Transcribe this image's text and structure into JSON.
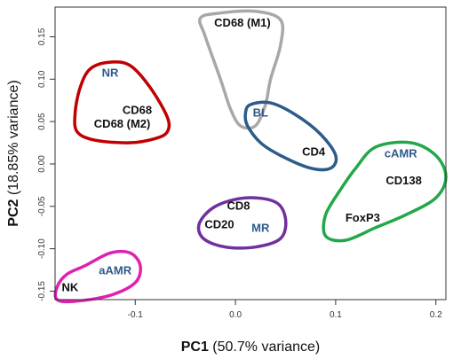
{
  "chart_data": {
    "type": "scatter",
    "title": "",
    "xlabel": {
      "prefix": "PC1",
      "suffix": " (50.7% variance)"
    },
    "ylabel": {
      "prefix": "PC2",
      "suffix": " (18.85% variance)"
    },
    "xlim": [
      -0.18,
      0.21
    ],
    "ylim": [
      -0.16,
      0.185
    ],
    "xticks": [
      {
        "value": -0.1,
        "label": "-0.1"
      },
      {
        "value": 0.0,
        "label": "0.0"
      },
      {
        "value": 0.1,
        "label": "0.1"
      },
      {
        "value": 0.2,
        "label": "0.2"
      }
    ],
    "yticks": [
      {
        "value": -0.15,
        "label": "-0.15"
      },
      {
        "value": -0.1,
        "label": "-0.10"
      },
      {
        "value": -0.05,
        "label": "-0.05"
      },
      {
        "value": 0.0,
        "label": "0.00"
      },
      {
        "value": 0.05,
        "label": "0.05"
      },
      {
        "value": 0.1,
        "label": "0.10"
      },
      {
        "value": 0.15,
        "label": "0.15"
      }
    ],
    "grid": false,
    "groups": [
      {
        "label": "NR",
        "color": "#c00000",
        "label_color": "#2e5b8a",
        "label_at": [
          -0.125,
          0.103
        ],
        "outline": [
          [
            -0.126,
            0.12
          ],
          [
            -0.145,
            0.112
          ],
          [
            -0.155,
            0.09
          ],
          [
            -0.16,
            0.06
          ],
          [
            -0.158,
            0.038
          ],
          [
            -0.14,
            0.028
          ],
          [
            -0.105,
            0.025
          ],
          [
            -0.08,
            0.03
          ],
          [
            -0.068,
            0.038
          ],
          [
            -0.068,
            0.055
          ],
          [
            -0.085,
            0.09
          ],
          [
            -0.105,
            0.116
          ]
        ],
        "markers": [
          {
            "text": "CD68",
            "at": [
              -0.098,
              0.059
            ]
          },
          {
            "text": "CD68 (M2)",
            "at": [
              -0.113,
              0.043
            ]
          }
        ]
      },
      {
        "label": "",
        "color": "#a8a8a8",
        "label_color": "#111111",
        "label_at": [
          0.0,
          0.0
        ],
        "outline": [
          [
            -0.035,
            0.172
          ],
          [
            -0.015,
            0.178
          ],
          [
            0.02,
            0.18
          ],
          [
            0.045,
            0.17
          ],
          [
            0.045,
            0.14
          ],
          [
            0.035,
            0.1
          ],
          [
            0.03,
            0.07
          ],
          [
            0.02,
            0.045
          ],
          [
            0.005,
            0.045
          ],
          [
            -0.005,
            0.065
          ],
          [
            -0.015,
            0.1
          ],
          [
            -0.03,
            0.15
          ]
        ],
        "markers": [
          {
            "text": "CD68 (M1)",
            "at": [
              0.007,
              0.162
            ]
          }
        ]
      },
      {
        "label": "BL",
        "color": "#2e5b8a",
        "label_color": "#2e5b8a",
        "label_at": [
          0.025,
          0.056
        ],
        "outline": [
          [
            0.015,
            0.07
          ],
          [
            0.035,
            0.072
          ],
          [
            0.06,
            0.058
          ],
          [
            0.085,
            0.035
          ],
          [
            0.1,
            0.01
          ],
          [
            0.095,
            -0.005
          ],
          [
            0.075,
            -0.005
          ],
          [
            0.045,
            0.01
          ],
          [
            0.025,
            0.025
          ],
          [
            0.012,
            0.045
          ],
          [
            0.01,
            0.06
          ]
        ],
        "markers": [
          {
            "text": "CD4",
            "at": [
              0.078,
              0.01
            ]
          }
        ]
      },
      {
        "label": "MR",
        "color": "#7030a0",
        "label_color": "#2e5b8a",
        "label_at": [
          0.025,
          -0.08
        ],
        "outline": [
          [
            -0.02,
            -0.05
          ],
          [
            0.01,
            -0.04
          ],
          [
            0.04,
            -0.045
          ],
          [
            0.05,
            -0.065
          ],
          [
            0.045,
            -0.088
          ],
          [
            0.02,
            -0.098
          ],
          [
            -0.01,
            -0.098
          ],
          [
            -0.032,
            -0.088
          ],
          [
            -0.036,
            -0.07
          ]
        ],
        "markers": [
          {
            "text": "CD8",
            "at": [
              0.003,
              -0.054
            ]
          },
          {
            "text": "CD20",
            "at": [
              -0.016,
              -0.076
            ]
          }
        ]
      },
      {
        "label": "cAMR",
        "color": "#22a84a",
        "label_color": "#2e5b8a",
        "label_at": [
          0.165,
          0.008
        ],
        "outline": [
          [
            0.14,
            0.02
          ],
          [
            0.175,
            0.025
          ],
          [
            0.2,
            0.01
          ],
          [
            0.21,
            -0.015
          ],
          [
            0.2,
            -0.04
          ],
          [
            0.17,
            -0.06
          ],
          [
            0.14,
            -0.075
          ],
          [
            0.11,
            -0.09
          ],
          [
            0.09,
            -0.085
          ],
          [
            0.09,
            -0.06
          ],
          [
            0.105,
            -0.03
          ],
          [
            0.12,
            -0.005
          ]
        ],
        "markers": [
          {
            "text": "CD138",
            "at": [
              0.168,
              -0.024
            ]
          },
          {
            "text": "FoxP3",
            "at": [
              0.127,
              -0.068
            ]
          }
        ]
      },
      {
        "label": "aAMR",
        "color": "#e020b0",
        "label_color": "#2e5b8a",
        "label_at": [
          -0.12,
          -0.13
        ],
        "outline": [
          [
            -0.15,
            -0.12
          ],
          [
            -0.125,
            -0.105
          ],
          [
            -0.105,
            -0.105
          ],
          [
            -0.095,
            -0.12
          ],
          [
            -0.1,
            -0.14
          ],
          [
            -0.125,
            -0.155
          ],
          [
            -0.16,
            -0.162
          ],
          [
            -0.178,
            -0.16
          ],
          [
            -0.178,
            -0.145
          ],
          [
            -0.168,
            -0.13
          ]
        ],
        "markers": [
          {
            "text": "NK",
            "at": [
              -0.165,
              -0.15
            ]
          }
        ]
      }
    ]
  }
}
